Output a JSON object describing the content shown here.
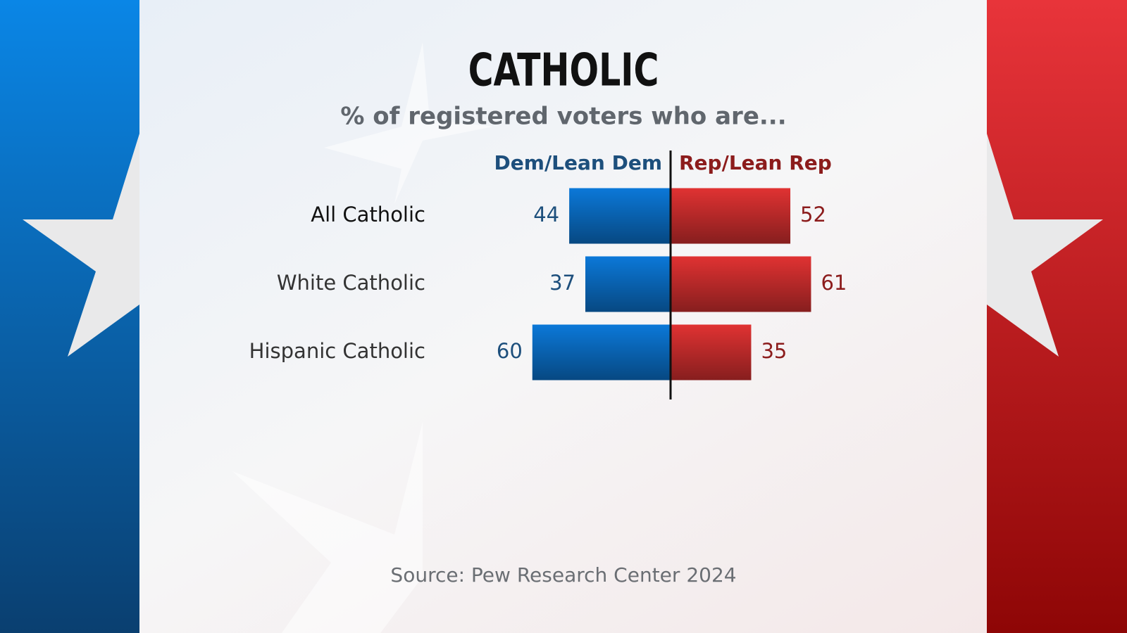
{
  "chart_data": {
    "type": "diverging-bar",
    "title": "CATHOLIC",
    "subtitle": "% of registered voters who are...",
    "source": "Source: Pew Research Center 2024",
    "categories": [
      "All Catholic",
      "White Catholic",
      "Hispanic Catholic"
    ],
    "series": [
      {
        "name": "Dem/Lean Dem",
        "color": "#0b78d8",
        "label_color": "#1d4f7c",
        "values": [
          44,
          37,
          60
        ]
      },
      {
        "name": "Rep/Lean Rep",
        "color": "#e03232",
        "label_color": "#8c1c1c",
        "values": [
          52,
          61,
          35
        ]
      }
    ]
  }
}
